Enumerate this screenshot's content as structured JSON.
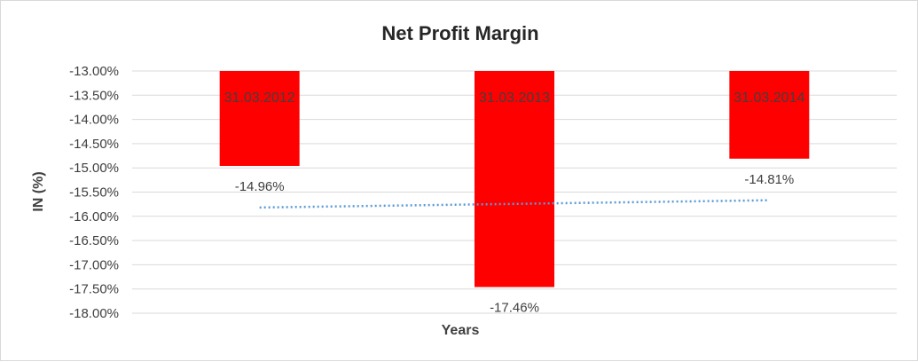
{
  "chart_data": {
    "type": "bar",
    "title": "Net Profit Margin",
    "xlabel": "Years",
    "ylabel": "IN (%)",
    "categories": [
      "31.03.2012",
      "31.03.2013",
      "31.03.2014"
    ],
    "values": [
      -14.96,
      -17.46,
      -14.81
    ],
    "data_labels": [
      "-14.96%",
      "-17.46%",
      "-14.81%"
    ],
    "ylim": [
      -18,
      -13
    ],
    "y_ticks": [
      "-13.00%",
      "-13.50%",
      "-14.00%",
      "-14.50%",
      "-15.00%",
      "-15.50%",
      "-16.00%",
      "-16.50%",
      "-17.00%",
      "-17.50%",
      "-18.00%"
    ],
    "y_tick_values": [
      -13,
      -13.5,
      -14,
      -14.5,
      -15,
      -15.5,
      -16,
      -16.5,
      -17,
      -17.5,
      -18
    ],
    "bar_color": "#ff0000",
    "trendline": {
      "type": "linear",
      "style": "dotted",
      "color": "#5b9bd5"
    },
    "grid": true,
    "legend": "none"
  }
}
